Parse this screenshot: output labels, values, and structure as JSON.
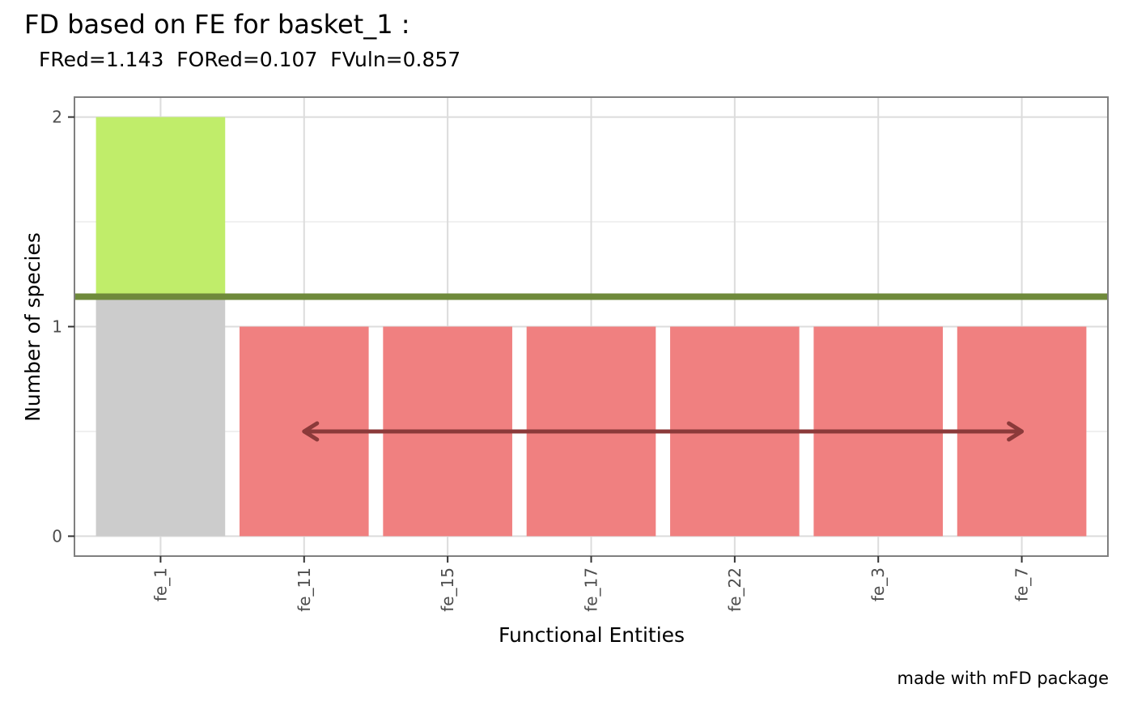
{
  "chart_data": {
    "type": "bar",
    "title": "FD based on FE for basket_1 :",
    "subtitle": "FRed=1.143  FORed=0.107  FVuln=0.857",
    "caption": "made with mFD package",
    "xlabel": "Functional Entities",
    "ylabel": "Number of species",
    "categories": [
      "fe_1",
      "fe_11",
      "fe_15",
      "fe_17",
      "fe_22",
      "fe_3",
      "fe_7"
    ],
    "values": [
      2,
      1,
      1,
      1,
      1,
      1,
      1
    ],
    "y_ticks": [
      "0",
      "1",
      "2"
    ],
    "ylim": [
      -0.095,
      2.095
    ],
    "grid": true,
    "bar_colors": {
      "below_line": "#cccccc",
      "above_line": "#c0ed6a",
      "single_species": "#f08080"
    },
    "reference_line": {
      "y": 1.143,
      "color": "#6f8a3b"
    },
    "arrow": {
      "x_from": "fe_11",
      "x_to": "fe_7",
      "y": 0.5,
      "color": "#8b3a3a"
    }
  }
}
